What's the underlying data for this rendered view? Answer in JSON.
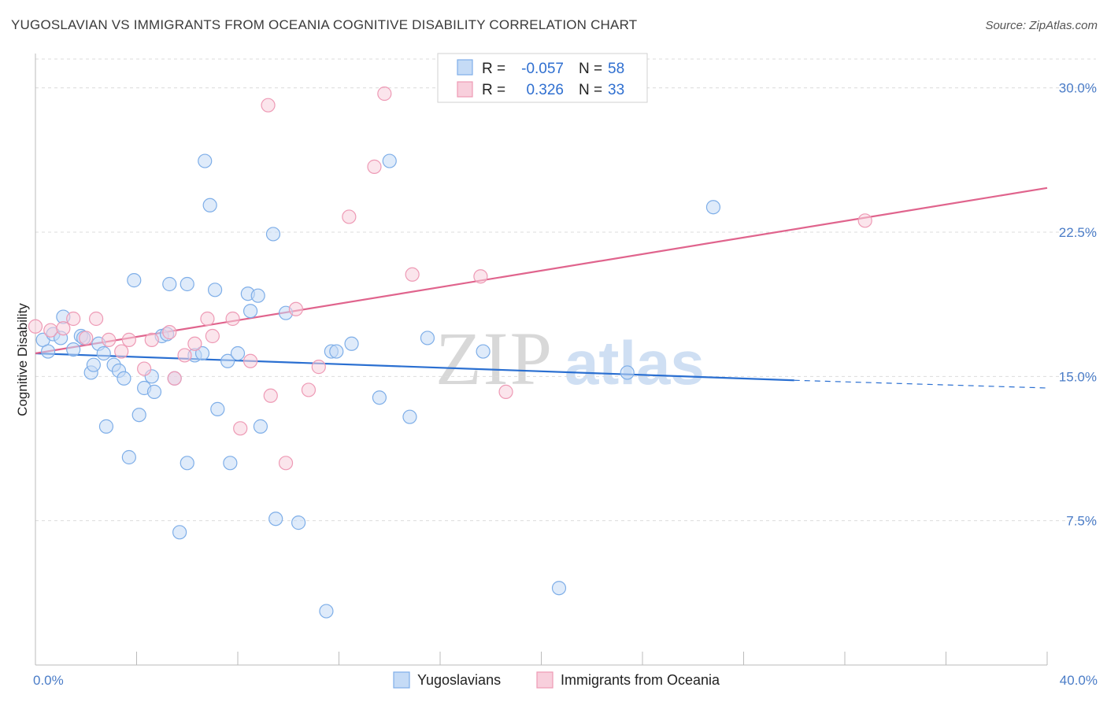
{
  "title": "YUGOSLAVIAN VS IMMIGRANTS FROM OCEANIA COGNITIVE DISABILITY CORRELATION CHART",
  "source": "Source: ZipAtlas.com",
  "watermark": {
    "zip": "ZIP",
    "atlas": "atlas"
  },
  "colors": {
    "blue": "#7eaee8",
    "blue_fill": "#c5dbf6",
    "blue_line": "#2a6fd1",
    "pink": "#ee9ab5",
    "pink_fill": "#f8cfdc",
    "pink_line": "#e0648d",
    "grid": "#dcdcdc",
    "tick_label": "#4a7cc7"
  },
  "legend": {
    "rows": [
      {
        "r_label": "R =",
        "r_value": "-0.057",
        "n_label": "N =",
        "n_value": "58"
      },
      {
        "r_label": "R =",
        "r_value": "0.326",
        "n_label": "N =",
        "n_value": "33"
      }
    ]
  },
  "bottom_legend": [
    "Yugoslavians",
    "Immigrants from Oceania"
  ],
  "chart_data": {
    "type": "scatter",
    "title": "YUGOSLAVIAN VS IMMIGRANTS FROM OCEANIA COGNITIVE DISABILITY CORRELATION CHART",
    "xlabel": "",
    "ylabel": "Cognitive Disability",
    "xlim": [
      0,
      40
    ],
    "ylim": [
      0,
      31.5
    ],
    "x_tick_labels": [
      "0.0%",
      "40.0%"
    ],
    "y_ticks": [
      7.5,
      15.0,
      22.5,
      30.0
    ],
    "y_tick_labels": [
      "7.5%",
      "15.0%",
      "22.5%",
      "30.0%"
    ],
    "grid": true,
    "legend_position": "top-center",
    "series": [
      {
        "name": "Yugoslavians",
        "color": "#7eaee8",
        "trend": {
          "x": [
            0,
            30
          ],
          "y": [
            16.2,
            14.8
          ],
          "dashed_to": [
            40,
            14.4
          ]
        },
        "points": [
          [
            0.3,
            16.9
          ],
          [
            0.5,
            16.3
          ],
          [
            0.7,
            17.2
          ],
          [
            1.1,
            18.1
          ],
          [
            1.0,
            17.0
          ],
          [
            1.5,
            16.4
          ],
          [
            1.8,
            17.1
          ],
          [
            1.9,
            17.0
          ],
          [
            2.2,
            15.2
          ],
          [
            2.3,
            15.6
          ],
          [
            2.5,
            16.7
          ],
          [
            2.7,
            16.2
          ],
          [
            2.8,
            12.4
          ],
          [
            3.1,
            15.6
          ],
          [
            3.3,
            15.3
          ],
          [
            3.5,
            14.9
          ],
          [
            3.7,
            10.8
          ],
          [
            3.9,
            20.0
          ],
          [
            4.1,
            13.0
          ],
          [
            4.3,
            14.4
          ],
          [
            4.6,
            15.0
          ],
          [
            4.7,
            14.2
          ],
          [
            5.0,
            17.1
          ],
          [
            5.2,
            17.2
          ],
          [
            5.3,
            19.8
          ],
          [
            5.5,
            14.9
          ],
          [
            5.7,
            6.9
          ],
          [
            6.0,
            19.8
          ],
          [
            6.0,
            10.5
          ],
          [
            6.3,
            16.1
          ],
          [
            6.6,
            16.2
          ],
          [
            6.7,
            26.2
          ],
          [
            6.9,
            23.9
          ],
          [
            7.1,
            19.5
          ],
          [
            7.2,
            13.3
          ],
          [
            7.6,
            15.8
          ],
          [
            7.7,
            10.5
          ],
          [
            8.0,
            16.2
          ],
          [
            8.4,
            19.3
          ],
          [
            8.5,
            18.4
          ],
          [
            8.8,
            19.2
          ],
          [
            8.9,
            12.4
          ],
          [
            9.4,
            22.4
          ],
          [
            9.5,
            7.6
          ],
          [
            9.9,
            18.3
          ],
          [
            10.4,
            7.4
          ],
          [
            11.5,
            2.8
          ],
          [
            11.7,
            16.3
          ],
          [
            11.9,
            16.3
          ],
          [
            12.5,
            16.7
          ],
          [
            13.6,
            13.9
          ],
          [
            14.0,
            26.2
          ],
          [
            14.8,
            12.9
          ],
          [
            15.5,
            17.0
          ],
          [
            17.7,
            16.3
          ],
          [
            20.7,
            4.0
          ],
          [
            23.4,
            15.2
          ],
          [
            26.8,
            23.8
          ]
        ]
      },
      {
        "name": "Immigrants from Oceania",
        "color": "#ee9ab5",
        "trend": {
          "x": [
            0,
            40
          ],
          "y": [
            16.2,
            24.8
          ]
        },
        "points": [
          [
            0.0,
            17.6
          ],
          [
            0.6,
            17.4
          ],
          [
            1.1,
            17.5
          ],
          [
            1.5,
            18.0
          ],
          [
            2.0,
            17.0
          ],
          [
            2.4,
            18.0
          ],
          [
            2.9,
            16.9
          ],
          [
            3.4,
            16.3
          ],
          [
            3.7,
            16.9
          ],
          [
            4.3,
            15.4
          ],
          [
            4.6,
            16.9
          ],
          [
            5.3,
            17.3
          ],
          [
            5.5,
            14.9
          ],
          [
            5.9,
            16.1
          ],
          [
            6.3,
            16.7
          ],
          [
            6.8,
            18.0
          ],
          [
            7.0,
            17.1
          ],
          [
            7.8,
            18.0
          ],
          [
            8.1,
            12.3
          ],
          [
            8.5,
            15.8
          ],
          [
            9.2,
            29.1
          ],
          [
            9.3,
            14.0
          ],
          [
            9.9,
            10.5
          ],
          [
            10.3,
            18.5
          ],
          [
            10.8,
            14.3
          ],
          [
            11.2,
            15.5
          ],
          [
            12.4,
            23.3
          ],
          [
            13.4,
            25.9
          ],
          [
            13.8,
            29.7
          ],
          [
            14.9,
            20.3
          ],
          [
            17.6,
            20.2
          ],
          [
            18.6,
            14.2
          ],
          [
            32.8,
            23.1
          ]
        ]
      }
    ]
  }
}
